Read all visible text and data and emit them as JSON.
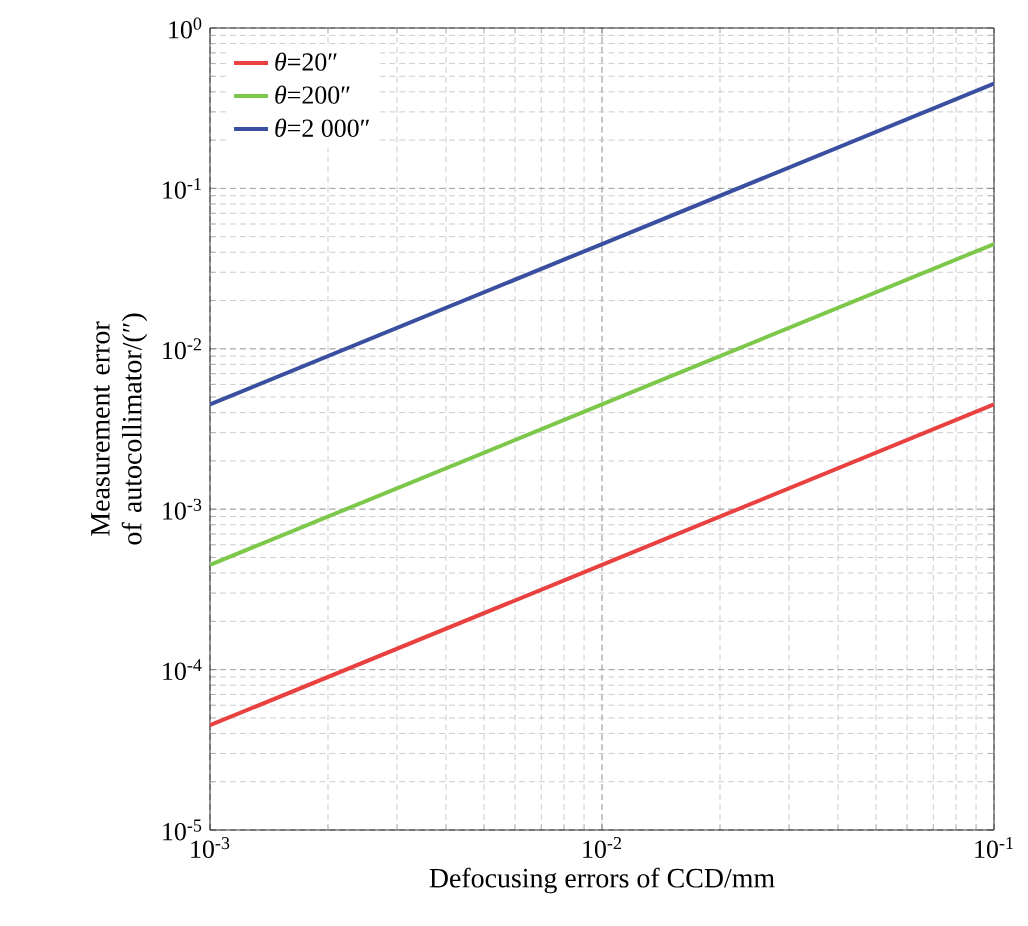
{
  "chart_data": {
    "type": "line",
    "xlabel": "Defocusing errors of CCD/mm",
    "ylabel": "Measurement error of autocollimator/(″)",
    "log": "xy",
    "grid": true,
    "legend": "top left",
    "line_style": "solid",
    "marker": "none",
    "xlim": [
      0.001,
      0.1
    ],
    "ylim": [
      1e-05,
      1
    ],
    "xticks": [
      {
        "value": 0.001,
        "label": "10$^{-3}$"
      },
      {
        "value": 0.01,
        "label": "10$^{-2}$"
      },
      {
        "value": 0.1,
        "label": "10$^{-1}$"
      }
    ],
    "yticks": [
      {
        "value": 1e-05,
        "label": "10$^{-5}$"
      },
      {
        "value": 0.0001,
        "label": "10$^{-4}$"
      },
      {
        "value": 0.001,
        "label": "10$^{-3}$"
      },
      {
        "value": 0.01,
        "label": "10$^{-2}$"
      },
      {
        "value": 0.1,
        "label": "10$^{-1}$"
      },
      {
        "value": 1,
        "label": "10$^{0}$"
      }
    ],
    "series": [
      {
        "name": "*θ*=20″",
        "color": "#e8413f",
        "x": [
          0.001,
          0.01,
          0.1
        ],
        "values": [
          4.5e-05,
          0.00045,
          0.0045
        ]
      },
      {
        "name": "*θ*=200″",
        "color": "#7dc84a",
        "x": [
          0.001,
          0.01,
          0.1
        ],
        "values": [
          0.00045,
          0.0045,
          0.045
        ]
      },
      {
        "name": "*θ*=2 000″",
        "color": "#3a4fa0",
        "x": [
          0.001,
          0.01,
          0.1
        ],
        "values": [
          0.0045,
          0.045,
          0.45
        ]
      }
    ]
  }
}
